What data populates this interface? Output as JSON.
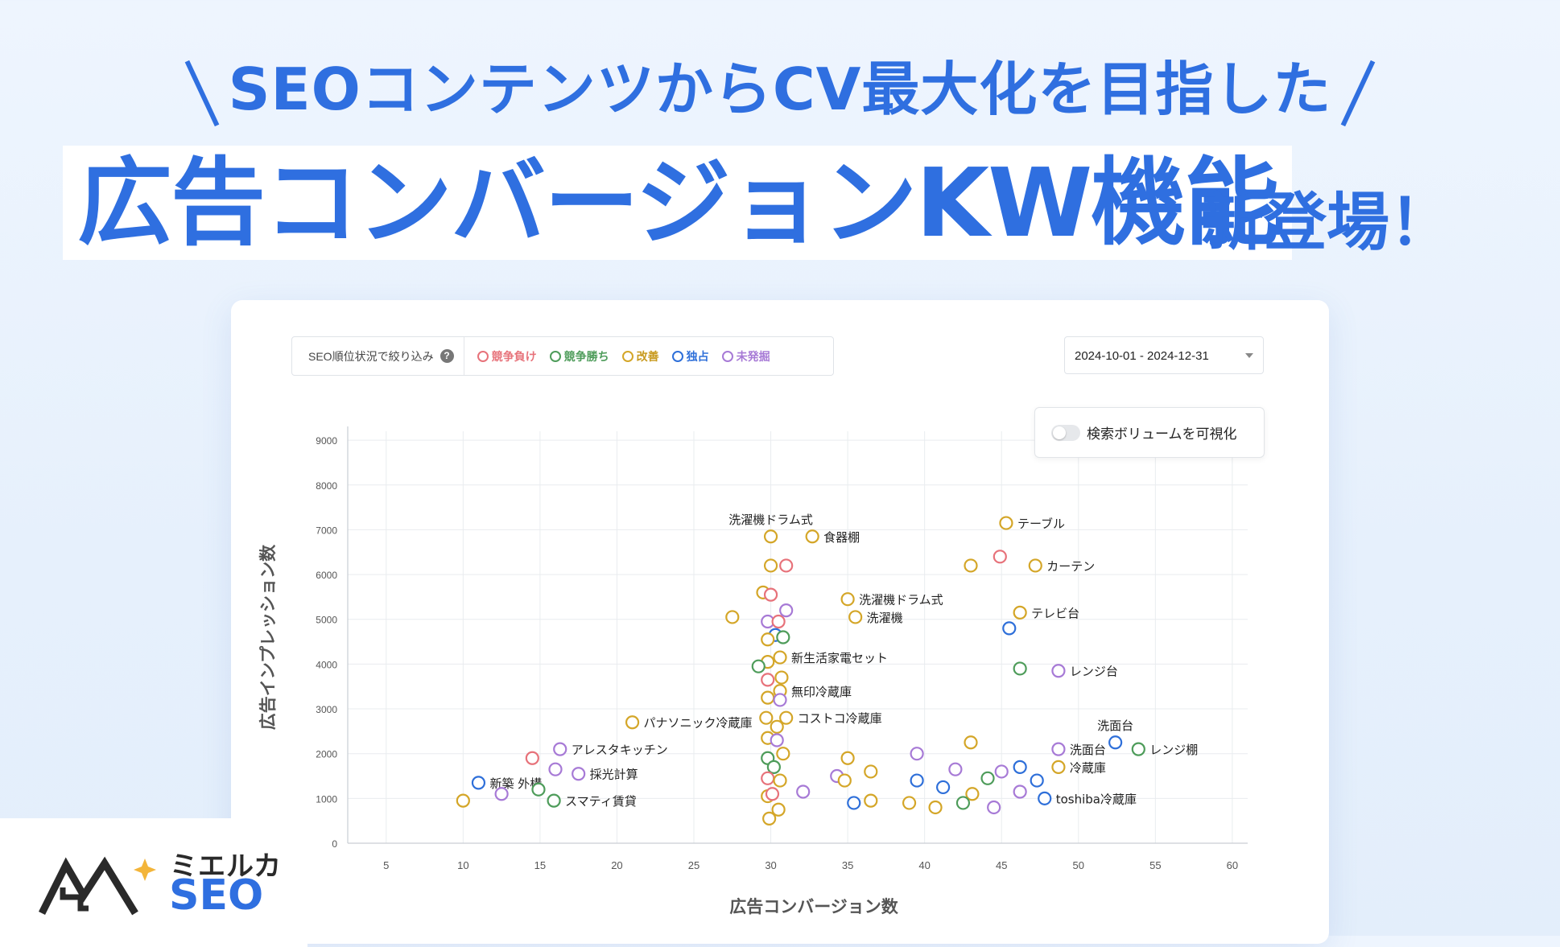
{
  "header": {
    "subtitle": "SEOコンテンツからCV最大化を目指した",
    "title": "広告コンバージョンKW機能",
    "title_suffix": "新登場！"
  },
  "filter": {
    "label": "SEO順位状況で絞り込み",
    "help": "?",
    "legend": [
      {
        "label": "競争負け",
        "color": "#e7727a"
      },
      {
        "label": "競争勝ち",
        "color": "#4e9c5a"
      },
      {
        "label": "改善",
        "color": "#d4a628"
      },
      {
        "label": "独占",
        "color": "#2e6fd9"
      },
      {
        "label": "未発掘",
        "color": "#a77ad6"
      }
    ]
  },
  "date_range": "2024-10-01 - 2024-12-31",
  "toggle_label": "検索ボリュームを可視化",
  "brand": {
    "name": "ミエルカ",
    "product": "SEO"
  },
  "chart_data": {
    "type": "scatter",
    "xlabel": "広告コンバージョン数",
    "ylabel": "広告インプレッション数",
    "xlim": [
      2.5,
      61
    ],
    "ylim": [
      0,
      9200
    ],
    "xticks": [
      5,
      10,
      15,
      20,
      25,
      30,
      35,
      40,
      45,
      50,
      55,
      60
    ],
    "yticks": [
      0,
      1000,
      2000,
      3000,
      4000,
      5000,
      6000,
      7000,
      8000,
      9000
    ],
    "grid": true,
    "colors": {
      "lose": "#e7727a",
      "win": "#4e9c5a",
      "improve": "#d4a628",
      "mono": "#2e6fd9",
      "undisc": "#a77ad6"
    },
    "points": [
      {
        "x": 30,
        "y": 6850,
        "s": "improve",
        "label": "洗濯機ドラム式",
        "pos": "top"
      },
      {
        "x": 32.7,
        "y": 6850,
        "s": "improve",
        "label": "食器棚"
      },
      {
        "x": 30,
        "y": 6200,
        "s": "improve"
      },
      {
        "x": 31,
        "y": 6200,
        "s": "lose"
      },
      {
        "x": 29.5,
        "y": 5600,
        "s": "improve"
      },
      {
        "x": 30,
        "y": 5550,
        "s": "lose"
      },
      {
        "x": 27.5,
        "y": 5050,
        "s": "improve"
      },
      {
        "x": 29.8,
        "y": 4950,
        "s": "undisc"
      },
      {
        "x": 30.5,
        "y": 4950,
        "s": "lose"
      },
      {
        "x": 31,
        "y": 5200,
        "s": "undisc"
      },
      {
        "x": 30.3,
        "y": 4650,
        "s": "mono"
      },
      {
        "x": 29.8,
        "y": 4550,
        "s": "improve"
      },
      {
        "x": 30.8,
        "y": 4600,
        "s": "win"
      },
      {
        "x": 29.8,
        "y": 4050,
        "s": "improve"
      },
      {
        "x": 30.6,
        "y": 4150,
        "s": "improve",
        "label": "新生活家電セット"
      },
      {
        "x": 29.2,
        "y": 3950,
        "s": "win"
      },
      {
        "x": 29.8,
        "y": 3650,
        "s": "lose"
      },
      {
        "x": 30.7,
        "y": 3700,
        "s": "improve"
      },
      {
        "x": 30.6,
        "y": 3400,
        "s": "improve",
        "label": "無印冷蔵庫"
      },
      {
        "x": 29.8,
        "y": 3250,
        "s": "improve"
      },
      {
        "x": 30.6,
        "y": 3200,
        "s": "undisc"
      },
      {
        "x": 29.7,
        "y": 2800,
        "s": "improve"
      },
      {
        "x": 31,
        "y": 2800,
        "s": "improve",
        "label": "コストコ冷蔵庫"
      },
      {
        "x": 30.4,
        "y": 2600,
        "s": "improve"
      },
      {
        "x": 29.8,
        "y": 2350,
        "s": "improve"
      },
      {
        "x": 30.4,
        "y": 2300,
        "s": "undisc"
      },
      {
        "x": 29.8,
        "y": 1900,
        "s": "win"
      },
      {
        "x": 30.8,
        "y": 2000,
        "s": "improve"
      },
      {
        "x": 30.2,
        "y": 1700,
        "s": "win"
      },
      {
        "x": 29.8,
        "y": 1450,
        "s": "lose"
      },
      {
        "x": 30.6,
        "y": 1400,
        "s": "improve"
      },
      {
        "x": 29.8,
        "y": 1050,
        "s": "improve"
      },
      {
        "x": 30.1,
        "y": 1100,
        "s": "lose"
      },
      {
        "x": 30.5,
        "y": 750,
        "s": "improve"
      },
      {
        "x": 29.9,
        "y": 550,
        "s": "improve"
      },
      {
        "x": 21,
        "y": 2700,
        "s": "improve",
        "label": "パナソニック冷蔵庫"
      },
      {
        "x": 16.3,
        "y": 2100,
        "s": "undisc",
        "label": "アレスタキッチン"
      },
      {
        "x": 14.5,
        "y": 1900,
        "s": "lose"
      },
      {
        "x": 16,
        "y": 1650,
        "s": "undisc"
      },
      {
        "x": 17.5,
        "y": 1550,
        "s": "undisc",
        "label": "採光計算"
      },
      {
        "x": 11,
        "y": 1350,
        "s": "mono",
        "label": "新築 外構"
      },
      {
        "x": 14.9,
        "y": 1200,
        "s": "win"
      },
      {
        "x": 12.5,
        "y": 1100,
        "s": "undisc"
      },
      {
        "x": 10,
        "y": 950,
        "s": "improve"
      },
      {
        "x": 15.9,
        "y": 950,
        "s": "win",
        "label": "スマティ賃貸"
      },
      {
        "x": 35,
        "y": 5450,
        "s": "improve",
        "label": "洗濯機ドラム式"
      },
      {
        "x": 35.5,
        "y": 5050,
        "s": "improve",
        "label": "洗濯機"
      },
      {
        "x": 35,
        "y": 1900,
        "s": "improve"
      },
      {
        "x": 36.5,
        "y": 1600,
        "s": "improve"
      },
      {
        "x": 34.3,
        "y": 1500,
        "s": "undisc"
      },
      {
        "x": 34.8,
        "y": 1400,
        "s": "improve"
      },
      {
        "x": 32.1,
        "y": 1150,
        "s": "undisc"
      },
      {
        "x": 35.4,
        "y": 900,
        "s": "mono"
      },
      {
        "x": 36.5,
        "y": 950,
        "s": "improve"
      },
      {
        "x": 39,
        "y": 900,
        "s": "improve"
      },
      {
        "x": 39.5,
        "y": 2000,
        "s": "undisc"
      },
      {
        "x": 39.5,
        "y": 1400,
        "s": "mono"
      },
      {
        "x": 40.7,
        "y": 800,
        "s": "improve"
      },
      {
        "x": 41.2,
        "y": 1250,
        "s": "mono"
      },
      {
        "x": 42,
        "y": 1650,
        "s": "undisc"
      },
      {
        "x": 43,
        "y": 2250,
        "s": "improve"
      },
      {
        "x": 43,
        "y": 6200,
        "s": "improve"
      },
      {
        "x": 44.9,
        "y": 6400,
        "s": "lose"
      },
      {
        "x": 45.3,
        "y": 7150,
        "s": "improve",
        "label": "テーブル"
      },
      {
        "x": 47.2,
        "y": 6200,
        "s": "improve",
        "label": "カーテン"
      },
      {
        "x": 46.2,
        "y": 5150,
        "s": "improve",
        "label": "テレビ台"
      },
      {
        "x": 45.5,
        "y": 4800,
        "s": "mono"
      },
      {
        "x": 46.2,
        "y": 3900,
        "s": "win"
      },
      {
        "x": 48.7,
        "y": 3850,
        "s": "undisc",
        "label": "レンジ台"
      },
      {
        "x": 44.1,
        "y": 1450,
        "s": "win"
      },
      {
        "x": 45,
        "y": 1600,
        "s": "undisc"
      },
      {
        "x": 43.1,
        "y": 1100,
        "s": "improve"
      },
      {
        "x": 42.5,
        "y": 900,
        "s": "win"
      },
      {
        "x": 44.5,
        "y": 800,
        "s": "undisc"
      },
      {
        "x": 46.2,
        "y": 1700,
        "s": "mono"
      },
      {
        "x": 47.3,
        "y": 1400,
        "s": "mono"
      },
      {
        "x": 46.2,
        "y": 1150,
        "s": "undisc"
      },
      {
        "x": 48.7,
        "y": 2100,
        "s": "undisc",
        "label": "洗面台"
      },
      {
        "x": 48.7,
        "y": 1700,
        "s": "improve",
        "label": "冷蔵庫"
      },
      {
        "x": 47.8,
        "y": 1000,
        "s": "mono",
        "label": "toshiba冷蔵庫"
      },
      {
        "x": 52.4,
        "y": 2250,
        "s": "mono",
        "label": "洗面台",
        "pos": "top"
      },
      {
        "x": 53.9,
        "y": 2100,
        "s": "win",
        "label": "レンジ棚"
      }
    ]
  }
}
